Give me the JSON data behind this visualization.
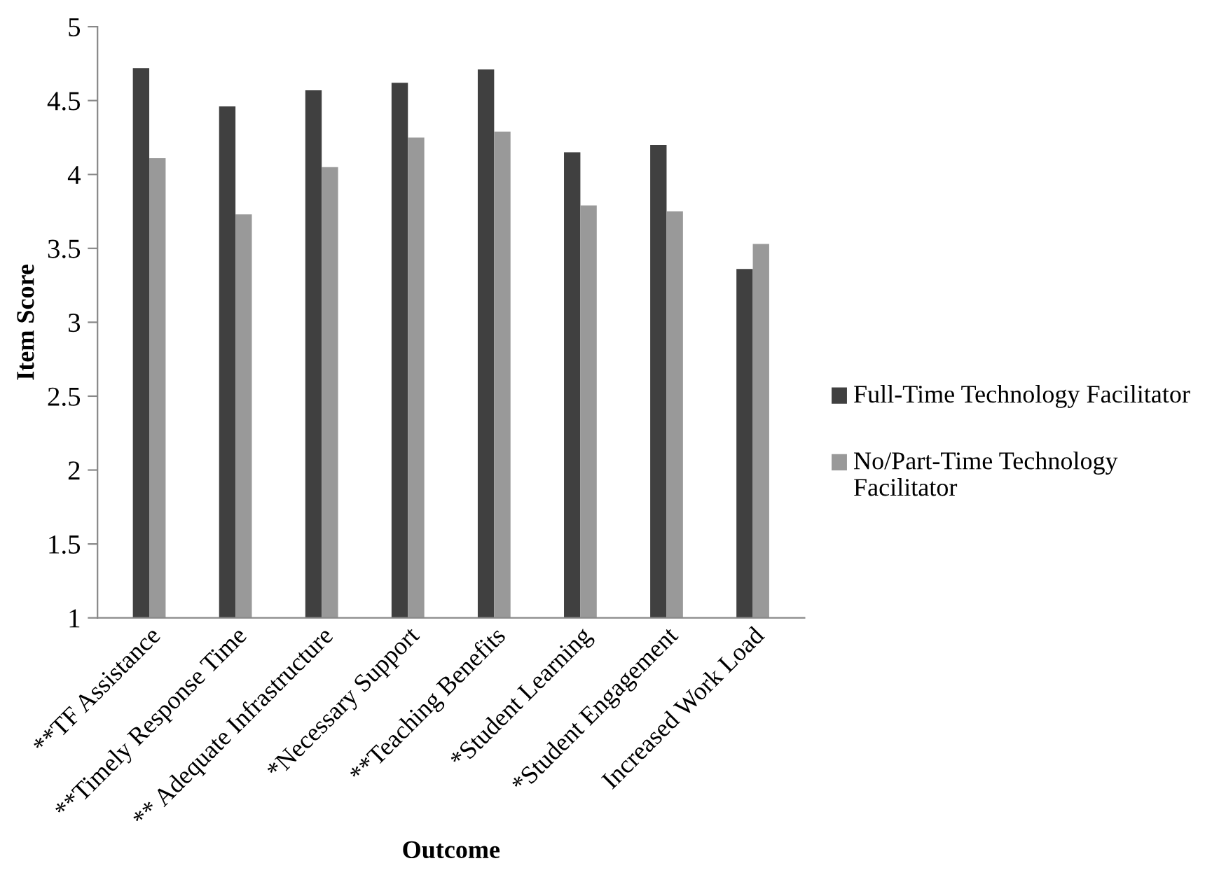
{
  "chart_data": {
    "type": "bar",
    "xlabel": "Outcome",
    "ylabel": "Item Score",
    "categories": [
      "**TF Assistance",
      "**Timely Response Time",
      "** Adequate Infrastructure",
      "*Necessary Support",
      "**Teaching Benefits",
      "*Student Learning",
      "*Student Engagement",
      "Increased Work Load"
    ],
    "series": [
      {
        "name": "Full-Time Technology Facilitator",
        "color": "#404040",
        "values": [
          4.72,
          4.46,
          4.57,
          4.62,
          4.71,
          4.15,
          4.2,
          3.36
        ]
      },
      {
        "name": "No/Part-Time Technology Facilitator",
        "color": "#999999",
        "values": [
          4.11,
          3.73,
          4.05,
          4.25,
          4.29,
          3.79,
          3.75,
          3.53
        ]
      }
    ],
    "ylim": [
      1,
      5
    ],
    "yticks": [
      1,
      1.5,
      2,
      2.5,
      3,
      3.5,
      4,
      4.5,
      5
    ],
    "grid": false,
    "legend": "right"
  }
}
